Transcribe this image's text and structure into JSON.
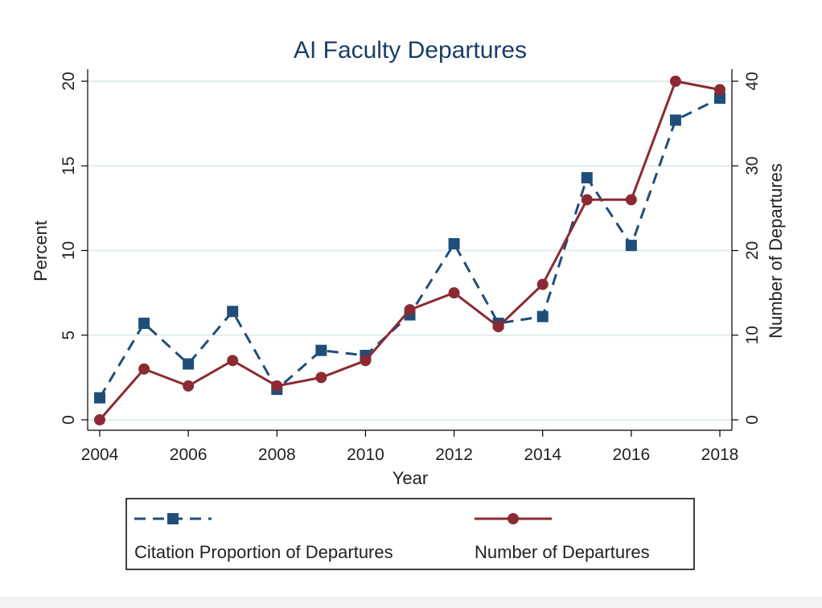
{
  "chart_data": {
    "type": "line",
    "title": "AI Faculty Departures",
    "xlabel": "Year",
    "ylabel_left": "Percent",
    "ylabel_right": "Number of Departures",
    "x": [
      2004,
      2005,
      2006,
      2007,
      2008,
      2009,
      2010,
      2011,
      2012,
      2013,
      2014,
      2015,
      2016,
      2017,
      2018
    ],
    "xticks": [
      "2004",
      "2006",
      "2008",
      "2010",
      "2012",
      "2014",
      "2016",
      "2018"
    ],
    "xlim": [
      2004,
      2018
    ],
    "yticks_left": [
      "0",
      "5",
      "10",
      "15",
      "20"
    ],
    "ylim_left": [
      0,
      20
    ],
    "yticks_right": [
      "0",
      "10",
      "20",
      "30",
      "40"
    ],
    "ylim_right": [
      0,
      40
    ],
    "grid": true,
    "legend_position": "bottom",
    "series": [
      {
        "name": "Citation Proportion of Departures",
        "axis": "left",
        "marker": "square",
        "line_style": "dashed",
        "color": "#1f4e79",
        "values": [
          1.3,
          5.7,
          3.3,
          6.4,
          1.8,
          4.1,
          3.8,
          6.2,
          10.4,
          5.7,
          6.1,
          14.3,
          10.3,
          17.7,
          19.0
        ]
      },
      {
        "name": "Number of Departures",
        "axis": "right",
        "marker": "circle",
        "line_style": "solid",
        "color": "#8b2a33",
        "values": [
          0,
          6,
          4,
          7,
          4,
          5,
          7,
          13,
          15,
          11,
          16,
          26,
          26,
          40,
          39
        ]
      }
    ]
  }
}
